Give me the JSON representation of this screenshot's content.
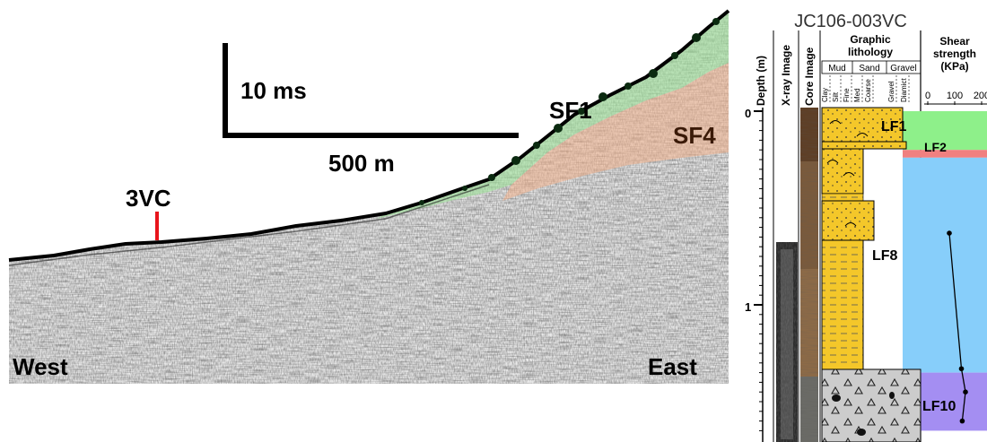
{
  "seismic": {
    "scale_time": "10 ms",
    "scale_distance": "500 m",
    "core_site": "3VC",
    "unit_sf1": "SF1",
    "unit_sf4": "SF4",
    "west": "West",
    "east": "East",
    "colors": {
      "sf1_fill": "#9fe29a",
      "sf4_fill": "#f3b08b",
      "core_marker": "#e8141b"
    }
  },
  "log": {
    "title": "JC106-003VC",
    "headers": {
      "depth": "Depth (m)",
      "xray": "X-ray Image",
      "core": "Core Image",
      "lithology": "Graphic lithology",
      "mud": "Mud",
      "sand": "Sand",
      "gravel": "Gravel",
      "shear": "Shear strength (KPa)"
    },
    "grain_sizes": [
      "Clay",
      "Silt",
      "Fine",
      "Med",
      "Coarse",
      "Gravel",
      "Diamict"
    ],
    "shear_ticks": [
      "0",
      "100",
      "200"
    ],
    "depth_ticks": [
      "0",
      "1"
    ],
    "facies": [
      {
        "label": "LF1",
        "color": "#8ef08a",
        "top_m": 0.0,
        "bottom_m": 0.2
      },
      {
        "label": "LF2",
        "color": "#f08080",
        "top_m": 0.2,
        "bottom_m": 0.24
      },
      {
        "label": "LF8",
        "color": "#87cefa",
        "top_m": 0.24,
        "bottom_m": 1.35
      },
      {
        "label": "LF10",
        "color": "#a48ef2",
        "top_m": 1.35,
        "bottom_m": 1.65
      }
    ],
    "shear_profile_kpa": [
      {
        "depth_m": 0.63,
        "value": 80
      },
      {
        "depth_m": 1.33,
        "value": 125
      },
      {
        "depth_m": 1.45,
        "value": 140
      },
      {
        "depth_m": 1.6,
        "value": 128
      }
    ],
    "colors": {
      "sand_fill": "#f4c72a",
      "diamict_fill": "#c9c9c9"
    }
  }
}
